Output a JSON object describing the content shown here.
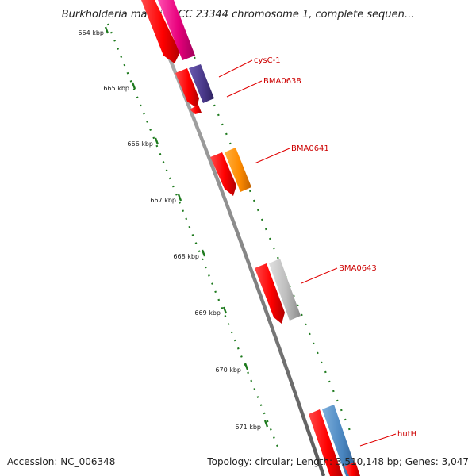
{
  "title": "Burkholderia mallei ATCC 23344 chromosome 1, complete sequen...",
  "footer": {
    "accession": "Accession: NC_006348",
    "summary": "Topology: circular; Length: 3,510,148 bp; Genes: 3,047"
  },
  "colors": {
    "backbone": "#8c8c8c",
    "tick": "#1e7a1e",
    "label_line": "#e00000",
    "label_text": "#cc0000",
    "cds_red": "#ff0000"
  },
  "ruler": {
    "unit": "kbp",
    "ticks": [
      "664 kbp",
      "665 kbp",
      "666 kbp",
      "667 kbp",
      "668 kbp",
      "669 kbp",
      "670 kbp",
      "671 kbp"
    ]
  },
  "genes": [
    {
      "label": "cysC-1",
      "color": "#e8007c"
    },
    {
      "label": "BMA0638",
      "color": "#4b3a8c"
    },
    {
      "label": "BMA0641",
      "color": "#ff8c00"
    },
    {
      "label": "BMA0643",
      "color": "#bdbdbd"
    },
    {
      "label": "hutH",
      "color": "#4a86c0"
    }
  ]
}
